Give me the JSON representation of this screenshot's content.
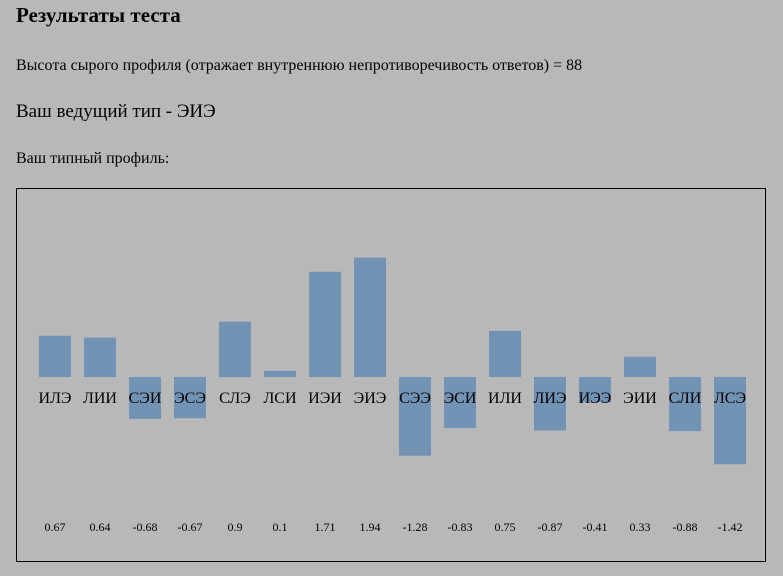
{
  "page": {
    "title": "Результаты теста",
    "raw_profile_text": "Высота сырого профиля (отражает внутреннюю непротиворечивость ответов) = 88",
    "leading_type_text": "Ваш ведущий тип - ЭИЭ",
    "profile_label": "Ваш типный профиль:"
  },
  "chart_data": {
    "type": "bar",
    "categories": [
      "ИЛЭ",
      "ЛИИ",
      "СЭИ",
      "ЭСЭ",
      "СЛЭ",
      "ЛСИ",
      "ИЭИ",
      "ЭИЭ",
      "СЭЭ",
      "ЭСИ",
      "ИЛИ",
      "ЛИЭ",
      "ИЭЭ",
      "ЭИИ",
      "СЛИ",
      "ЛСЭ"
    ],
    "values": [
      0.67,
      0.64,
      -0.68,
      -0.67,
      0.9,
      0.1,
      1.71,
      1.94,
      -1.28,
      -0.83,
      0.75,
      -0.87,
      -0.41,
      0.33,
      -0.88,
      -1.42
    ],
    "value_labels": [
      "0.67",
      "0.64",
      "-0.68",
      "-0.67",
      "0.9",
      "0.1",
      "1.71",
      "1.94",
      "-1.28",
      "-0.83",
      "0.75",
      "-0.87",
      "-0.41",
      "0.33",
      "-0.88",
      "-1.42"
    ],
    "bar_color": "#7293b4",
    "title": "",
    "xlabel": "",
    "ylabel": "",
    "grid": false,
    "legend": "none"
  }
}
